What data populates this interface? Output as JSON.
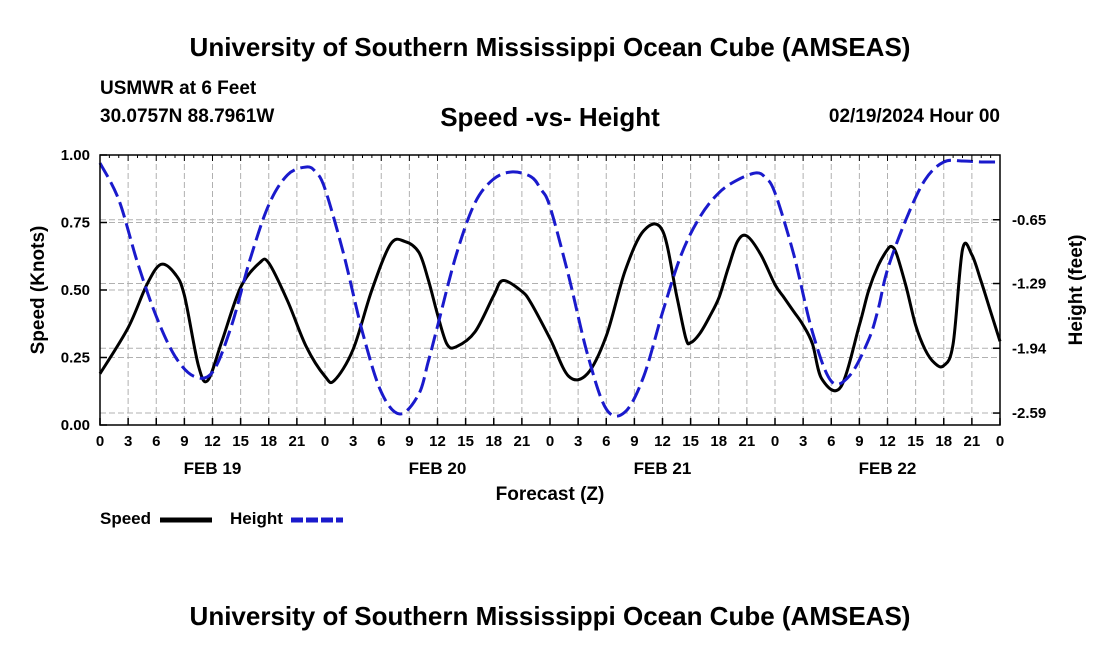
{
  "header": {
    "title": "University of Southern Mississippi Ocean Cube (AMSEAS)",
    "station": "USMWR at 6 Feet",
    "coords": "30.0757N  88.7961W",
    "plot_title": "Speed -vs- Height",
    "datetime": "02/19/2024 Hour 00"
  },
  "footer": {
    "title": "University of Southern Mississippi Ocean Cube (AMSEAS)"
  },
  "legend": {
    "speed_label": "Speed",
    "height_label": "Height"
  },
  "colors": {
    "speed": "#000000",
    "height": "#1a1acc",
    "grid": "#b0b0b0"
  },
  "chart_data": {
    "type": "line",
    "xlabel": "Forecast (Z)",
    "ylabel": "Speed (Knots)",
    "ylabel_right": "Height (feet)",
    "xlim": [
      0,
      96
    ],
    "ylim": [
      0,
      1
    ],
    "y_ticks": [
      "0.00",
      "0.25",
      "0.50",
      "0.75",
      "1.00"
    ],
    "y_tick_values": [
      0,
      0.25,
      0.5,
      0.75,
      1.0
    ],
    "y2_ticks": [
      "-0.65",
      "-1.29",
      "-1.94",
      "-2.59"
    ],
    "y2_tick_values": [
      -0.65,
      -1.29,
      -1.94,
      -2.59
    ],
    "y2lim": [
      -2.71,
      0.0
    ],
    "x_ticks": [
      0,
      3,
      6,
      9,
      12,
      15,
      18,
      21,
      24,
      27,
      30,
      33,
      36,
      39,
      42,
      45,
      48,
      51,
      54,
      57,
      60,
      63,
      66,
      69,
      72,
      75,
      78,
      81,
      84,
      87,
      90,
      93,
      96
    ],
    "x_tick_labels": [
      "0",
      "3",
      "6",
      "9",
      "12",
      "15",
      "18",
      "21",
      "0",
      "3",
      "6",
      "9",
      "12",
      "15",
      "18",
      "21",
      "0",
      "3",
      "6",
      "9",
      "12",
      "15",
      "18",
      "21",
      "0",
      "3",
      "6",
      "9",
      "12",
      "15",
      "18",
      "21",
      "0"
    ],
    "date_labels": [
      {
        "hour": 12,
        "label": "FEB 19"
      },
      {
        "hour": 36,
        "label": "FEB 20"
      },
      {
        "hour": 60,
        "label": "FEB 21"
      },
      {
        "hour": 84,
        "label": "FEB 22"
      }
    ],
    "series": [
      {
        "name": "Speed",
        "axis": "left",
        "style": "solid",
        "x": [
          0,
          3,
          5,
          6.5,
          8,
          9,
          10.5,
          11.5,
          13,
          15,
          17,
          18,
          20,
          22,
          24,
          25,
          27,
          29,
          31,
          32.5,
          34,
          35,
          36,
          37,
          38,
          40,
          42,
          43,
          45,
          46,
          48,
          50,
          52,
          54,
          56,
          58,
          60,
          61.5,
          62.5,
          63,
          64,
          65,
          66,
          67,
          68,
          69,
          70.5,
          72,
          73,
          74,
          75,
          76,
          77,
          79,
          81,
          82,
          83,
          84,
          84.5,
          85,
          86,
          87,
          88,
          89,
          90,
          91,
          92,
          93,
          94,
          95,
          96
        ],
        "y": [
          0.19,
          0.36,
          0.52,
          0.595,
          0.56,
          0.48,
          0.22,
          0.165,
          0.31,
          0.51,
          0.6,
          0.6,
          0.46,
          0.29,
          0.18,
          0.165,
          0.28,
          0.5,
          0.67,
          0.68,
          0.64,
          0.54,
          0.41,
          0.3,
          0.29,
          0.345,
          0.48,
          0.535,
          0.495,
          0.45,
          0.32,
          0.18,
          0.19,
          0.33,
          0.57,
          0.72,
          0.72,
          0.48,
          0.32,
          0.305,
          0.34,
          0.4,
          0.47,
          0.58,
          0.68,
          0.7,
          0.63,
          0.52,
          0.47,
          0.42,
          0.37,
          0.3,
          0.17,
          0.14,
          0.37,
          0.5,
          0.59,
          0.65,
          0.66,
          0.63,
          0.51,
          0.37,
          0.28,
          0.23,
          0.22,
          0.3,
          0.65,
          0.63,
          0.53,
          0.42,
          0.31
        ]
      },
      {
        "name": "Height",
        "axis": "right",
        "style": "dashed",
        "x": [
          0,
          2,
          4,
          6,
          8,
          10,
          12,
          14,
          16,
          18,
          20,
          22,
          23,
          24,
          26,
          28,
          30,
          32,
          34,
          35,
          36,
          38,
          40,
          42,
          44,
          46,
          47,
          48,
          50,
          52,
          54,
          56,
          58,
          60,
          62,
          64,
          66,
          68,
          70,
          71,
          72,
          74,
          76,
          78,
          80,
          82,
          83,
          84,
          86,
          88,
          90,
          92,
          94,
          96
        ],
        "y": [
          -0.08,
          -0.45,
          -1.08,
          -1.62,
          -2.02,
          -2.22,
          -2.18,
          -1.72,
          -1.05,
          -0.5,
          -0.2,
          -0.12,
          -0.17,
          -0.34,
          -1.0,
          -1.78,
          -2.38,
          -2.6,
          -2.4,
          -2.08,
          -1.72,
          -1.0,
          -0.48,
          -0.24,
          -0.17,
          -0.22,
          -0.34,
          -0.52,
          -1.22,
          -2.0,
          -2.55,
          -2.58,
          -2.22,
          -1.58,
          -1.0,
          -0.62,
          -0.38,
          -0.25,
          -0.18,
          -0.23,
          -0.38,
          -1.0,
          -1.78,
          -2.27,
          -2.21,
          -1.85,
          -1.55,
          -1.15,
          -0.64,
          -0.25,
          -0.07,
          -0.06,
          -0.07,
          -0.07
        ]
      }
    ]
  }
}
